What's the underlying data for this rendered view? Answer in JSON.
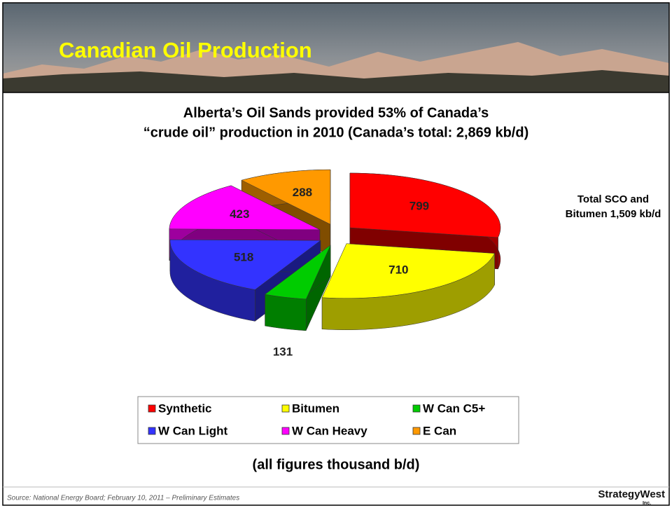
{
  "header": {
    "title": "Canadian Oil Production"
  },
  "chart_data": {
    "type": "pie",
    "title": [
      "Alberta’s Oil Sands provided 53% of Canada’s",
      "“crude oil” production in 2010 (Canada’s total: 2,869 kb/d)"
    ],
    "categories": [
      "Synthetic",
      "Bitumen",
      "W Can C5+",
      "W Can Light",
      "W Can Heavy",
      "E Can"
    ],
    "values": [
      799,
      710,
      131,
      518,
      423,
      288
    ],
    "colors": [
      "#ff0000",
      "#ffff00",
      "#00cc00",
      "#3333ff",
      "#ff00ff",
      "#ff9900"
    ],
    "annotation": [
      "Total SCO and",
      "Bitumen 1,509 kb/d"
    ],
    "note": "(all figures thousand b/d)",
    "legend": true
  },
  "footer": {
    "source": "Source: National Energy Board; February 10, 2011 – Preliminary Estimates",
    "logo": "StrategyWest",
    "logo_sub": "Inc."
  }
}
